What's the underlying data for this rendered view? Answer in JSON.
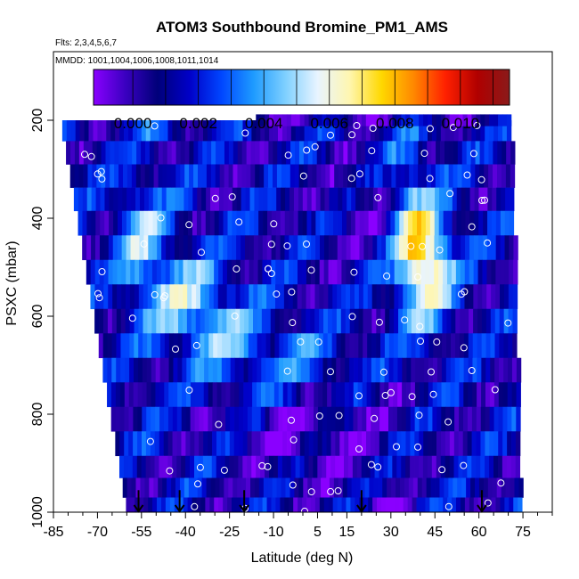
{
  "chart_data": {
    "type": "heatmap",
    "title": "ATOM3 Southbound Bromine_PM1_AMS",
    "flights_label": "Flts: 2,3,4,5,6,7",
    "dates_label": "MMDD: 1001,1004,1006,1008,1011,1014",
    "xlabel": "Latitude (deg N)",
    "ylabel": "PSXC (mbar)",
    "xlim": [
      -85,
      85
    ],
    "ylim": [
      1000,
      60
    ],
    "x_ticks": [
      -85,
      -70,
      -55,
      -40,
      -25,
      -10,
      5,
      15,
      30,
      45,
      60,
      75
    ],
    "x_tick_labels": [
      "-85",
      "-70",
      "-55",
      "-40",
      "-25",
      "-10",
      "5",
      "15",
      "30",
      "45",
      "60",
      "75"
    ],
    "y_ticks": [
      200,
      400,
      600,
      800,
      1000
    ],
    "y_tick_labels": [
      "200",
      "400",
      "600",
      "800",
      "1000"
    ],
    "colorbar": {
      "range": [
        -0.0012,
        0.0115
      ],
      "ticks": [
        0.0,
        0.002,
        0.004,
        0.006,
        0.008,
        0.01
      ],
      "tick_labels": [
        "0.000",
        "0.002",
        "0.004",
        "0.006",
        "0.008",
        "0.010"
      ],
      "colors": [
        "#8a00ff",
        "#3a00c0",
        "#00007a",
        "#0000c8",
        "#0046ff",
        "#1e9bff",
        "#7fd0ff",
        "#e8f4ff",
        "#fff6b0",
        "#ffd800",
        "#ff8800",
        "#ff2000",
        "#b00000",
        "#8a1a1a"
      ]
    },
    "pressure_levels": [
      220,
      265,
      315,
      360,
      410,
      460,
      510,
      560,
      610,
      660,
      710,
      760,
      810,
      860,
      910,
      950,
      990
    ],
    "profile_latitudes": [
      -56,
      -42,
      -20,
      20,
      61
    ],
    "grid": false,
    "legend": "none"
  }
}
